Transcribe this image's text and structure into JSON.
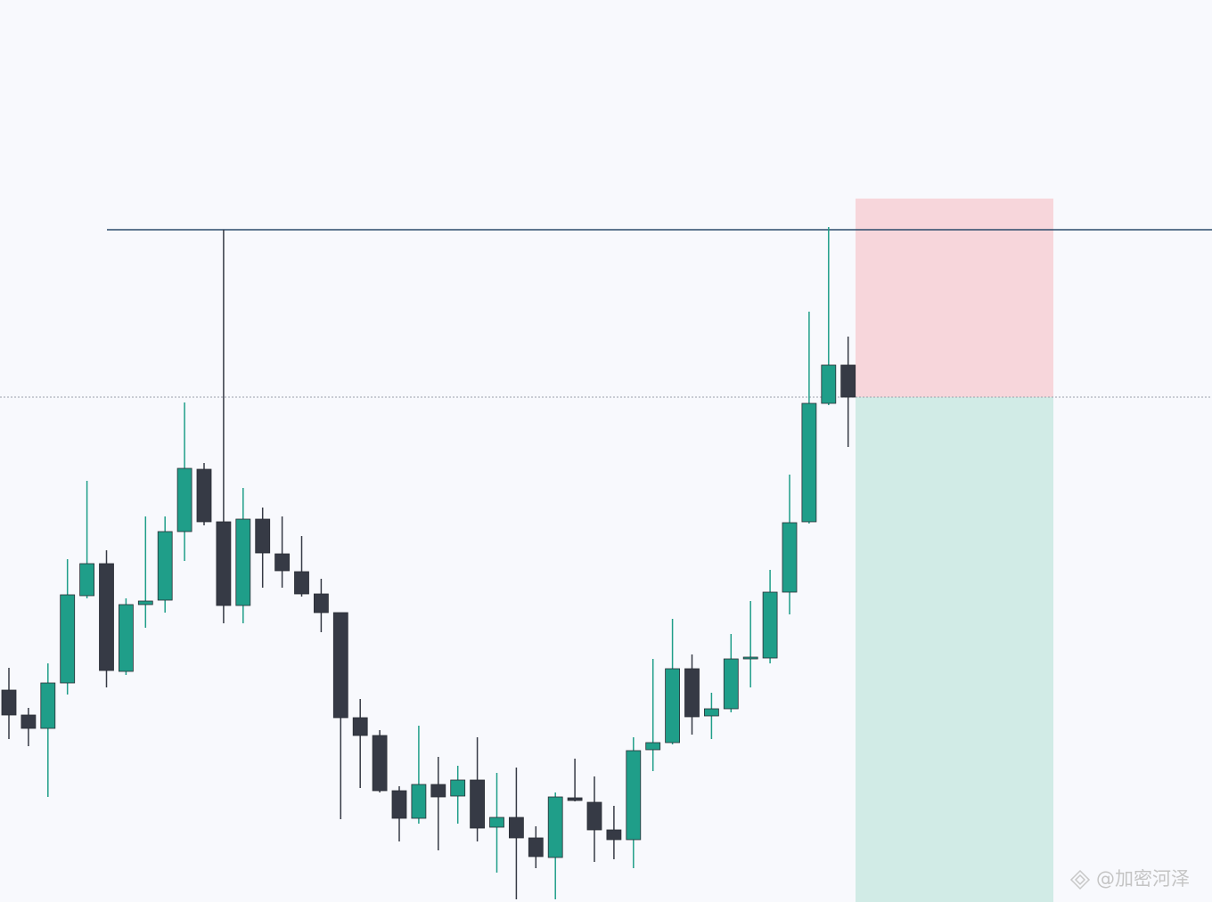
{
  "chart_data": {
    "type": "candlestick",
    "ylim": [
      0,
      1013
    ],
    "up_color": "#1f9e89",
    "down_color": "#363a45",
    "open": [
      238,
      210,
      195,
      246,
      344,
      380,
      259,
      334,
      339,
      416,
      486,
      427,
      333,
      430,
      391,
      371,
      346,
      325,
      207,
      187,
      125,
      94,
      132,
      119,
      137,
      84,
      95,
      72,
      50,
      117,
      112,
      81,
      70,
      171,
      179,
      262,
      209,
      217,
      273,
      274,
      348,
      427,
      560,
      603
    ],
    "high": [
      263,
      218,
      268,
      385,
      473,
      395,
      341,
      433,
      433,
      561,
      493,
      755,
      465,
      443,
      433,
      411,
      363,
      325,
      228,
      193,
      130,
      198,
      163,
      153,
      185,
      145,
      151,
      85,
      123,
      161,
      141,
      108,
      185,
      273,
      318,
      278,
      235,
      301,
      338,
      373,
      480,
      663,
      758,
      635
    ],
    "low": [
      183,
      175,
      118,
      233,
      341,
      241,
      255,
      308,
      325,
      383,
      423,
      313,
      313,
      353,
      353,
      343,
      303,
      93,
      128,
      123,
      68,
      88,
      58,
      88,
      68,
      33,
      3,
      38,
      3,
      113,
      45,
      48,
      38,
      147,
      177,
      188,
      183,
      213,
      241,
      268,
      323,
      425,
      558,
      511
    ],
    "close": [
      210,
      195,
      246,
      345,
      380,
      260,
      334,
      338,
      416,
      487,
      427,
      333,
      430,
      392,
      372,
      346,
      325,
      207,
      187,
      125,
      94,
      132,
      118,
      137,
      83,
      95,
      72,
      51,
      118,
      114,
      81,
      70,
      170,
      179,
      262,
      208,
      217,
      273,
      275,
      348,
      426,
      560,
      603,
      567
    ],
    "resistance": 755,
    "resistance_color": "#2a4a6b",
    "position": {
      "entry": 567,
      "stop": 790,
      "target": 0,
      "stop_color": "#f7d6db",
      "target_color": "#d1ebe6"
    },
    "watermark": "@加密河泽"
  }
}
